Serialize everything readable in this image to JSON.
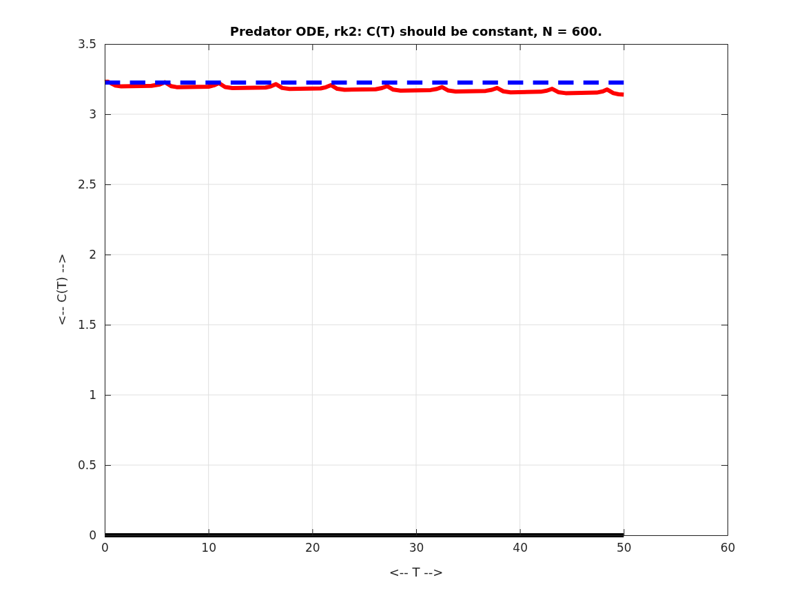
{
  "chart_data": {
    "type": "line",
    "title": "Predator ODE, rk2: C(T) should be constant, N = 600.",
    "xlabel": "<-- T -->",
    "ylabel": "<-- C(T) -->",
    "xlim": [
      0,
      60
    ],
    "xticks": [
      0,
      10,
      20,
      30,
      40,
      50,
      60
    ],
    "ylim": [
      0,
      3.5
    ],
    "yticks": [
      0,
      0.5,
      1,
      1.5,
      2,
      2.5,
      3,
      3.5
    ],
    "grid": true,
    "series": [
      {
        "color": "#ff0000",
        "line_style": "solid",
        "x": [
          0,
          0.3,
          1.0,
          1.6,
          4.5,
          5.3,
          5.8,
          6.4,
          7.0,
          10.0,
          10.5,
          11.0,
          11.6,
          12.3,
          15.5,
          16.0,
          16.5,
          17.1,
          17.8,
          20.8,
          21.3,
          21.8,
          22.4,
          23.1,
          26.1,
          26.7,
          27.2,
          27.8,
          28.5,
          31.4,
          32.0,
          32.5,
          33.1,
          33.8,
          36.7,
          37.3,
          37.8,
          38.4,
          39.1,
          42.0,
          42.6,
          43.1,
          43.7,
          44.4,
          47.4,
          48.0,
          48.4,
          49.0,
          49.5,
          50
        ],
        "values": [
          3.23,
          3.232,
          3.205,
          3.198,
          3.202,
          3.212,
          3.228,
          3.2,
          3.192,
          3.196,
          3.205,
          3.222,
          3.194,
          3.186,
          3.19,
          3.198,
          3.214,
          3.187,
          3.18,
          3.184,
          3.192,
          3.207,
          3.181,
          3.174,
          3.178,
          3.186,
          3.2,
          3.175,
          3.168,
          3.172,
          3.18,
          3.193,
          3.169,
          3.162,
          3.166,
          3.174,
          3.187,
          3.163,
          3.156,
          3.16,
          3.168,
          3.181,
          3.157,
          3.15,
          3.154,
          3.163,
          3.176,
          3.15,
          3.142,
          3.14
        ]
      },
      {
        "color": "#0000ff",
        "line_style": "dashed",
        "x": [
          0,
          50
        ],
        "values": [
          3.225,
          3.225
        ]
      },
      {
        "color": "#000000",
        "line_style": "solid",
        "x": [
          0,
          50
        ],
        "values": [
          0,
          0
        ]
      }
    ]
  }
}
